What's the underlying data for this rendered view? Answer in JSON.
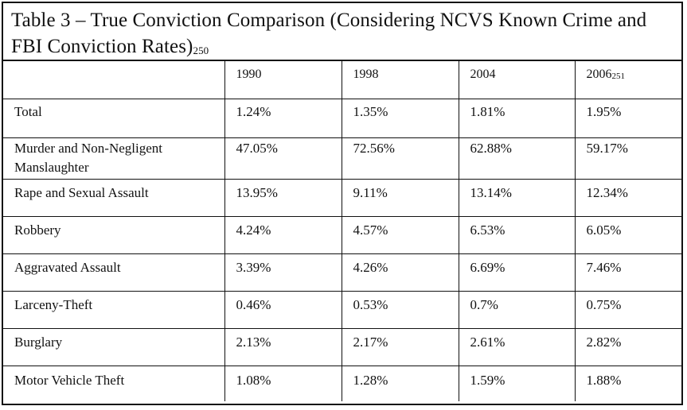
{
  "table": {
    "caption": "Table 3 – True Conviction Comparison (Considering NCVS Known Crime and FBI Conviction Rates)",
    "caption_footnote": "250",
    "columns": [
      {
        "label": "",
        "footnote": ""
      },
      {
        "label": "1990",
        "footnote": ""
      },
      {
        "label": "1998",
        "footnote": ""
      },
      {
        "label": "2004",
        "footnote": ""
      },
      {
        "label": "2006",
        "footnote": "251"
      }
    ],
    "rows": [
      {
        "label": "Total",
        "values": [
          "1.24%",
          "1.35%",
          "1.81%",
          "1.95%"
        ]
      },
      {
        "label": "Murder and Non-Negligent Manslaughter",
        "values": [
          "47.05%",
          "72.56%",
          "62.88%",
          "59.17%"
        ]
      },
      {
        "label": "Rape and Sexual Assault",
        "values": [
          "13.95%",
          "9.11%",
          "13.14%",
          "12.34%"
        ]
      },
      {
        "label": "Robbery",
        "values": [
          "4.24%",
          "4.57%",
          "6.53%",
          "6.05%"
        ]
      },
      {
        "label": "Aggravated Assault",
        "values": [
          "3.39%",
          "4.26%",
          "6.69%",
          "7.46%"
        ]
      },
      {
        "label": "Larceny-Theft",
        "values": [
          "0.46%",
          "0.53%",
          "0.7%",
          "0.75%"
        ]
      },
      {
        "label": "Burglary",
        "values": [
          "2.13%",
          "2.17%",
          "2.61%",
          "2.82%"
        ]
      },
      {
        "label": "Motor Vehicle Theft",
        "values": [
          "1.08%",
          "1.28%",
          "1.59%",
          "1.88%"
        ]
      }
    ]
  }
}
